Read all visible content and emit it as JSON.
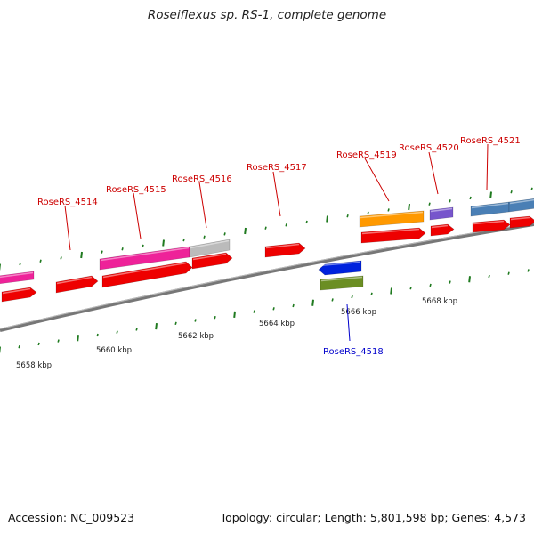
{
  "header": {
    "title": "Roseiflexus sp. RS-1, complete genome"
  },
  "footer": {
    "accession": "Accession: NC_009523",
    "topology": "Topology: circular; Length: 5,801,598 bp; Genes: 4,573"
  },
  "scale": {
    "ticks": [
      "5658 kbp",
      "5660 kbp",
      "5662 kbp",
      "5664 kbp",
      "5666 kbp",
      "5668 kbp"
    ]
  },
  "genes": [
    {
      "label": "RoseRS_4514",
      "strand": "+",
      "color": "#cc0000"
    },
    {
      "label": "RoseRS_4515",
      "strand": "+",
      "color": "#cc0000"
    },
    {
      "label": "RoseRS_4516",
      "strand": "+",
      "color": "#cc0000"
    },
    {
      "label": "RoseRS_4517",
      "strand": "+",
      "color": "#cc0000"
    },
    {
      "label": "RoseRS_4518",
      "strand": "-",
      "color": "#0000cc"
    },
    {
      "label": "RoseRS_4519",
      "strand": "+",
      "color": "#cc0000"
    },
    {
      "label": "RoseRS_4520",
      "strand": "+",
      "color": "#cc0000"
    },
    {
      "label": "RoseRS_4521",
      "strand": "+",
      "color": "#cc0000"
    }
  ],
  "colors": {
    "forward_cds": "#ee0000",
    "reverse_cds": "#0022dd",
    "backbone": "#8a8a8a",
    "tick": "#1f7a1f",
    "cog_magenta": "#ee2299",
    "cog_gray": "#bbbbbb",
    "cog_orange": "#ff9900",
    "cog_purple": "#7755cc",
    "cog_steelblue": "#4a7fb5",
    "cog_olive": "#6b8e23"
  }
}
